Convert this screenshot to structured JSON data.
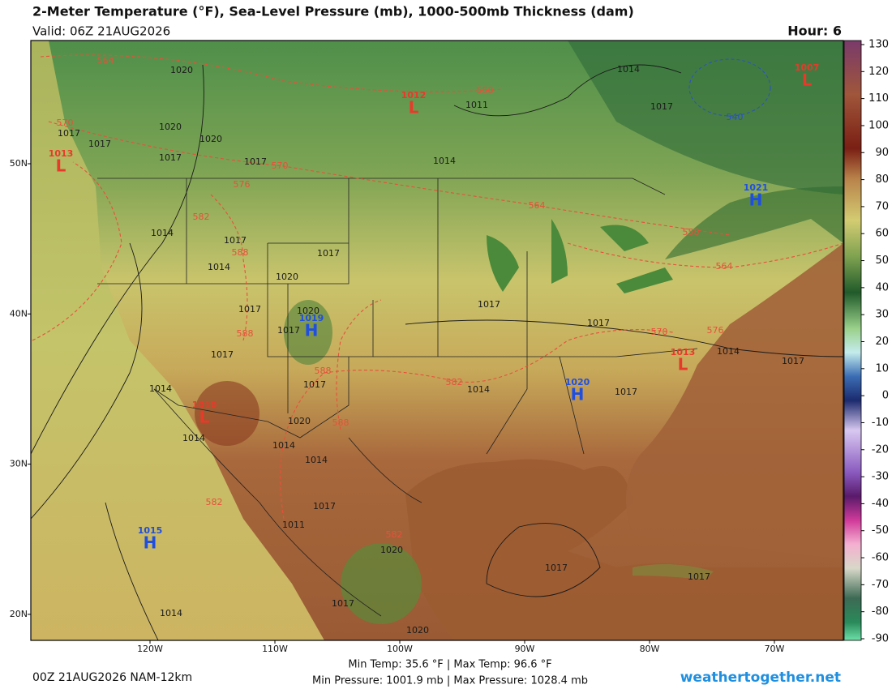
{
  "header": {
    "title": "2-Meter Temperature (°F), Sea-Level Pressure (mb), 1000-500mb Thickness (dam)",
    "valid": "Valid: 06Z 21AUG2026",
    "hour": "Hour: 6"
  },
  "map": {
    "lat_labels": [
      "50N",
      "40N",
      "30N",
      "20N"
    ],
    "lon_labels": [
      "120W",
      "110W",
      "100W",
      "90W",
      "80W",
      "70W"
    ],
    "centers": [
      {
        "letter": "L",
        "value": 1012
      },
      {
        "letter": "L",
        "value": 1007
      },
      {
        "letter": "L",
        "value": 1013
      },
      {
        "letter": "H",
        "value": 1021
      },
      {
        "letter": "H",
        "value": 1019
      },
      {
        "letter": "L",
        "value": 1013
      },
      {
        "letter": "H",
        "value": 1020
      },
      {
        "letter": "L",
        "value": 1010
      },
      {
        "letter": "H",
        "value": 1015
      }
    ],
    "isobar_labels": [
      1020,
      1020,
      1020,
      1017,
      1017,
      1017,
      1017,
      1011,
      1014,
      1014,
      1017,
      1014,
      1017,
      1014,
      1017,
      1020,
      1020,
      1017,
      1017,
      1017,
      1017,
      1017,
      1014,
      1017,
      1014,
      1014,
      1017,
      1017,
      1020,
      1014,
      1014,
      1014,
      1017,
      1011,
      1020,
      1017,
      1017,
      1014,
      1017,
      1020
    ],
    "thickness_labels": [
      564,
      558,
      570,
      570,
      576,
      582,
      588,
      588,
      588,
      582,
      588,
      582,
      582,
      564,
      558,
      564,
      570,
      576,
      540
    ]
  },
  "colorbar": {
    "lim": [
      -90,
      130
    ],
    "ticks": [
      130,
      120,
      110,
      100,
      90,
      80,
      70,
      60,
      50,
      40,
      30,
      20,
      10,
      0,
      -10,
      -20,
      -30,
      -40,
      -50,
      -60,
      -70,
      -80,
      -90
    ]
  },
  "footer": {
    "run": "00Z 21AUG2026 NAM-12km",
    "temps": "Min Temp:  35.6 °F | Max Temp:  96.6 °F",
    "pressures": "Min Pressure: 1001.9 mb | Max Pressure: 1028.4 mb",
    "site": "weathertogether.net"
  }
}
